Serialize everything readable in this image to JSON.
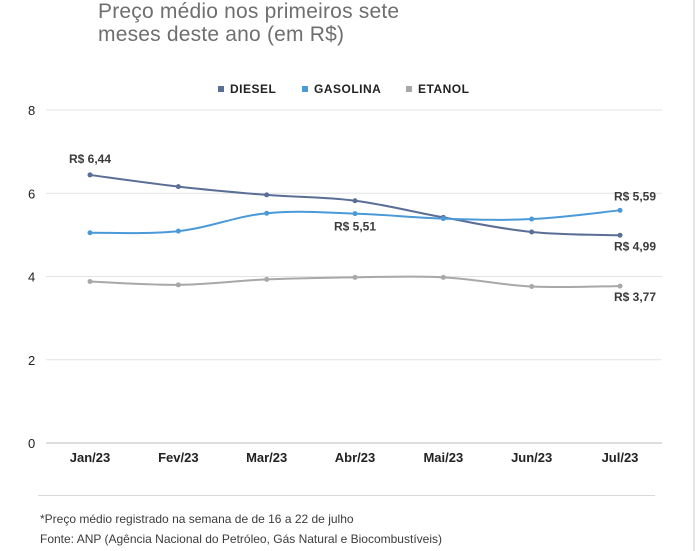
{
  "title_lines": [
    "Preço médio nos primeiros sete",
    "meses deste ano (em R$)"
  ],
  "footnote": "*Preço médio registrado na semana de de 16 a 22 de julho",
  "source": "Fonte: ANP (Agência Nacional do Petróleo, Gás Natural e Biocombustíveis)",
  "chart_data": {
    "type": "line",
    "title": "Preço médio nos primeiros sete meses deste ano (em R$)",
    "xlabel": "",
    "ylabel": "",
    "categories": [
      "Jan/23",
      "Fev/23",
      "Mar/23",
      "Abr/23",
      "Mai/23",
      "Jun/23",
      "Jul/23"
    ],
    "ylim": [
      0,
      8
    ],
    "yticks": [
      0,
      2,
      4,
      6,
      8
    ],
    "grid": true,
    "legend_position": "top",
    "series": [
      {
        "name": "DIESEL",
        "color": "#5a6e96",
        "values": [
          6.44,
          6.16,
          5.96,
          5.82,
          5.42,
          5.07,
          4.99
        ]
      },
      {
        "name": "GASOLINA",
        "color": "#4a9ad8",
        "values": [
          5.05,
          5.09,
          5.52,
          5.51,
          5.39,
          5.38,
          5.59
        ]
      },
      {
        "name": "ETANOL",
        "color": "#a8a8a8",
        "values": [
          3.88,
          3.8,
          3.93,
          3.98,
          3.98,
          3.76,
          3.77
        ]
      }
    ],
    "annotations": [
      {
        "series": "DIESEL",
        "index": 0,
        "text": "R$ 6,44",
        "anchor": "above"
      },
      {
        "series": "GASOLINA",
        "index": 3,
        "text": "R$ 5,51",
        "anchor": "below"
      },
      {
        "series": "GASOLINA",
        "index": 6,
        "text": "R$ 5,59",
        "anchor": "above"
      },
      {
        "series": "DIESEL",
        "index": 6,
        "text": "R$ 4,99",
        "anchor": "below"
      },
      {
        "series": "ETANOL",
        "index": 6,
        "text": "R$ 3,77",
        "anchor": "below"
      }
    ]
  }
}
